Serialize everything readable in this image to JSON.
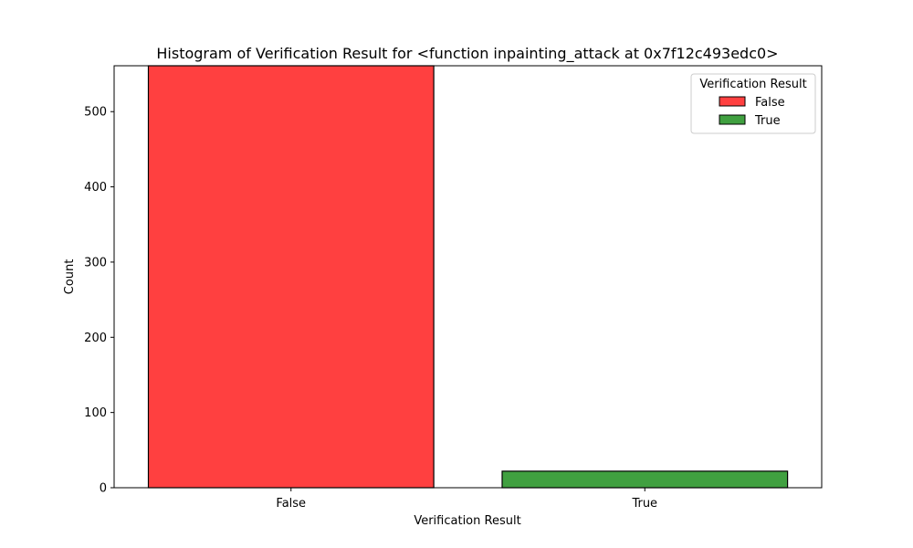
{
  "chart_data": {
    "type": "bar",
    "title": "Histogram of Verification Result for <function inpainting_attack at 0x7f12c493edc0>",
    "xlabel": "Verification Result",
    "ylabel": "Count",
    "categories": [
      "False",
      "True"
    ],
    "values": [
      561,
      22
    ],
    "colors": [
      "#ff4040",
      "#40a040"
    ],
    "ylim": [
      0,
      561
    ],
    "yticks": [
      0,
      100,
      200,
      300,
      400,
      500
    ],
    "grid": false,
    "legend": {
      "title": "Verification Result",
      "placement": "top-right",
      "entries": [
        {
          "label": "False",
          "color": "#ff4040"
        },
        {
          "label": "True",
          "color": "#40a040"
        }
      ]
    }
  }
}
